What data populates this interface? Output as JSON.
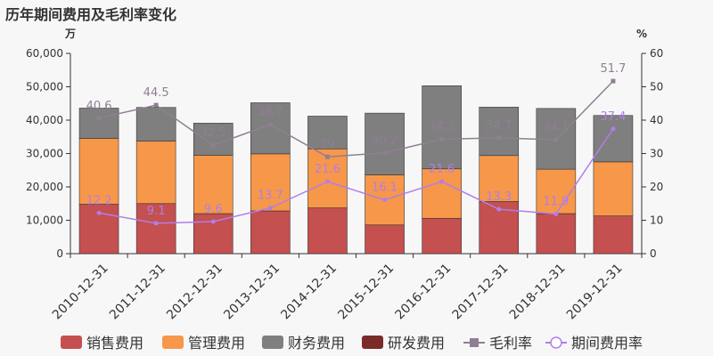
{
  "chart_data": {
    "type": "bar",
    "title": "历年期间费用及毛利率变化",
    "y_left_unit": "万",
    "y_right_unit": "%",
    "categories": [
      "2010-12-31",
      "2011-12-31",
      "2012-12-31",
      "2013-12-31",
      "2014-12-31",
      "2015-12-31",
      "2016-12-31",
      "2017-12-31",
      "2018-12-31",
      "2019-12-31"
    ],
    "y_left_ticks": [
      "0",
      "10,000",
      "20,000",
      "30,000",
      "40,000",
      "50,000",
      "60,000"
    ],
    "y_right_ticks": [
      "0",
      "10",
      "20",
      "30",
      "40",
      "50",
      "60"
    ],
    "ylim_left": [
      0,
      60000
    ],
    "ylim_right": [
      0,
      60
    ],
    "bar_series": [
      {
        "name": "销售费用",
        "color": "#c4504f",
        "values": [
          14800,
          15000,
          12000,
          12800,
          13700,
          8600,
          10600,
          15600,
          12000,
          11300
        ]
      },
      {
        "name": "管理费用",
        "color": "#f7974a",
        "values": [
          19700,
          18700,
          17500,
          17100,
          17700,
          15000,
          14800,
          13800,
          13300,
          16200
        ]
      },
      {
        "name": "财务费用",
        "color": "#7f7f7f",
        "values": [
          9100,
          10100,
          9600,
          15300,
          9800,
          18500,
          24900,
          14500,
          18200,
          13900
        ]
      },
      {
        "name": "研发费用",
        "color": "#7b2b29",
        "values": [
          0,
          0,
          0,
          0,
          0,
          0,
          0,
          0,
          0,
          0
        ]
      }
    ],
    "line_series": [
      {
        "name": "毛利率",
        "color": "#8f7f92",
        "marker": "square",
        "values": [
          40.6,
          44.5,
          32.5,
          38.7,
          29,
          30.2,
          34.3,
          34.7,
          34.1,
          51.7
        ],
        "labels": [
          "40.6",
          "44.5",
          "32.5",
          "38.7",
          "29",
          "30.2",
          "34.3",
          "34.7",
          "34.1",
          "51.7"
        ]
      },
      {
        "name": "期间费用率",
        "color": "#b07ee8",
        "marker": "circle",
        "values": [
          12.2,
          9.1,
          9.6,
          13.7,
          21.6,
          16.1,
          21.6,
          13.3,
          11.9,
          37.4
        ],
        "labels": [
          "12.2",
          "9.1",
          "9.6",
          "13.7",
          "21.6",
          "16.1",
          "21.6",
          "13.3",
          "11.9",
          "37.4"
        ]
      }
    ],
    "legend_position": "bottom",
    "grid": false
  }
}
